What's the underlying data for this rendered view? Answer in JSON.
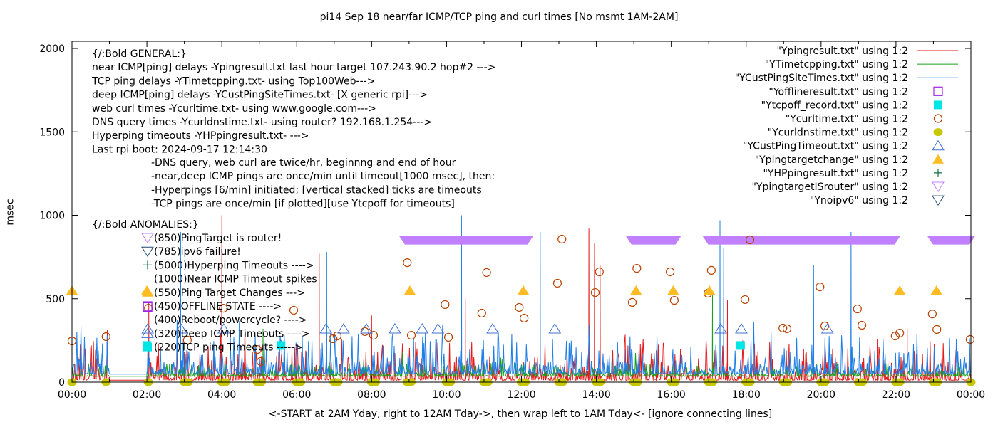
{
  "chart_data": {
    "type": "line",
    "title": "pi14 Sep 18  near/far ICMP/TCP ping and curl times [No msmt 1AM-2AM]",
    "xlabel": "<-START at 2AM Yday, right to 12AM Tday->, then wrap left to 1AM Tday<- [ignore connecting lines]",
    "ylabel": "msec",
    "xlim_hours": [
      0,
      24
    ],
    "ylim": [
      0,
      2050
    ],
    "x_ticks": [
      "00:00",
      "02:00",
      "04:00",
      "06:00",
      "08:00",
      "10:00",
      "12:00",
      "14:00",
      "16:00",
      "18:00",
      "20:00",
      "22:00",
      "00:00"
    ],
    "y_ticks": [
      0,
      500,
      1000,
      1500,
      2000
    ],
    "grid": false,
    "legend_position": "top-right",
    "annotations_general": [
      "{/:Bold GENERAL:}",
      "near ICMP[ping] delays -Ypingresult.txt last hour target 107.243.90.2 hop#2 --->",
      "TCP ping delays -YTimetcpping.txt- using Top100Web--->",
      "deep ICMP[ping] delays -YCustPingSiteTimes.txt- [X generic rpi]--->",
      "web curl times -Ycurltime.txt- using www.google.com--->",
      "DNS query times -Ycurldnstime.txt- using router? 192.168.1.254--->",
      "Hyperping timeouts -YHPpingresult.txt- --->",
      "Last rpi boot: 2024-09-17 12:14:30"
    ],
    "annotations_notes": [
      "-DNS query, web curl are twice/hr, beginnng and end of hour",
      "-near,deep ICMP pings are once/min until timeout[1000 msec], then:",
      " -Hyperpings [6/min] initiated; [vertical stacked] ticks are timeouts",
      "-TCP pings are once/min [if plotted][use Ytcpoff for timeouts]"
    ],
    "anomalies_title": "{/:Bold ANOMALIES:}",
    "anomalies": [
      {
        "marker": "tri-down-open-violet",
        "label": "(850)PingTarget is router!"
      },
      {
        "marker": "tri-down-open-navy",
        "label": "(785)ipv6 failure!"
      },
      {
        "marker": "plus-green",
        "label": "(5000)Hyperping Timeouts ---->"
      },
      {
        "marker": "none",
        "label": "(1000)Near ICMP Timeout spikes"
      },
      {
        "marker": "tri-up-filled-orange",
        "label": "(550)Ping Target Changes --->"
      },
      {
        "marker": "square-open-purple",
        "label": "(450)OFFLINE STATE ---->"
      },
      {
        "marker": "none",
        "label": "(400)Reboot/powercycle? ---->"
      },
      {
        "marker": "tri-up-open-blue",
        "label": "(320)Deep ICMP Timeouts ---->"
      },
      {
        "marker": "square-filled-cyan",
        "label": "(220)TCP ping Timeouts ----->"
      }
    ],
    "legend": [
      {
        "label": "\"Ypingresult.txt\" using 1:2",
        "style": "line",
        "color": "#e41a1c"
      },
      {
        "label": "\"YTimetcpping.txt\" using 1:2",
        "style": "line",
        "color": "#1aa01a"
      },
      {
        "label": "\"YCustPingSiteTimes.txt\" using 1:2",
        "style": "line",
        "color": "#1f7fe6"
      },
      {
        "label": "\"Yofflineresult.txt\" using 1:2",
        "style": "square-open",
        "color": "#a020f0"
      },
      {
        "label": "\"Ytcpoff_record.txt\" using 1:2",
        "style": "square-filled",
        "color": "#00e5e5"
      },
      {
        "label": "\"Ycurltime.txt\" using 1:2",
        "style": "circle-open",
        "color": "#b84000"
      },
      {
        "label": "\"Ycurldnstime.txt\" using 1:2",
        "style": "circle-filled",
        "color": "#c8c800"
      },
      {
        "label": "\"YCustPingTimeout.txt\" using 1:2",
        "style": "tri-up-open",
        "color": "#4070d0"
      },
      {
        "label": "\"Ypingtargetchange\" using 1:2",
        "style": "tri-up-filled",
        "color": "#ffbb22"
      },
      {
        "label": "\"YHPpingresult.txt\" using 1:2",
        "style": "plus",
        "color": "#107040"
      },
      {
        "label": "\"YpingtargetISrouter\" using 1:2",
        "style": "tri-down-open",
        "color": "#c080ff"
      },
      {
        "label": "\"Ynoipv6\" using 1:2",
        "style": "tri-down-open",
        "color": "#204870"
      }
    ],
    "series": [
      {
        "name": "Ycurltime.txt",
        "type": "scatter",
        "x": [
          0.0,
          0.91,
          2.04,
          3.08,
          4.04,
          4.95,
          5.04,
          5.92,
          6.97,
          7.08,
          7.82,
          8.05,
          8.95,
          9.06,
          9.96,
          10.05,
          10.94,
          11.07,
          11.94,
          12.07,
          12.96,
          13.08,
          13.97,
          14.08,
          14.96,
          15.08,
          15.97,
          16.08,
          16.98,
          17.07,
          17.97,
          18.1,
          18.98,
          19.09,
          19.97,
          20.1,
          20.97,
          21.09,
          21.98,
          22.1,
          22.97,
          23.09,
          23.98
        ],
        "y": [
          247,
          273,
          443,
          252,
          443,
          196,
          124,
          431,
          260,
          277,
          303,
          281,
          716,
          281,
          465,
          269,
          414,
          657,
          448,
          384,
          593,
          857,
          537,
          661,
          478,
          682,
          661,
          490,
          533,
          670,
          495,
          853,
          324,
          320,
          571,
          337,
          439,
          341,
          277,
          294,
          409,
          316,
          256
        ]
      },
      {
        "name": "Ycurldnstime.txt",
        "type": "scatter",
        "x": [
          0.0,
          0.91,
          2.04,
          3.0,
          3.1,
          4.0,
          4.1,
          4.95,
          5.05,
          6.0,
          6.1,
          7.0,
          7.1,
          8.0,
          8.1,
          8.95,
          9.05,
          10.0,
          10.1,
          11.0,
          11.1,
          12.0,
          12.1,
          13.0,
          13.1,
          14.0,
          14.1,
          15.0,
          15.1,
          16.0,
          16.1,
          17.0,
          17.1,
          18.0,
          18.1,
          19.0,
          19.1,
          20.0,
          20.1,
          21.0,
          21.1,
          22.0,
          22.1,
          23.0,
          23.1,
          24.0
        ],
        "y": [
          0,
          0,
          0,
          0,
          0,
          0,
          0,
          0,
          0,
          0,
          0,
          0,
          0,
          0,
          0,
          0,
          0,
          0,
          0,
          0,
          0,
          0,
          0,
          0,
          0,
          0,
          0,
          0,
          0,
          0,
          0,
          0,
          0,
          0,
          0,
          0,
          0,
          0,
          0,
          0,
          0,
          0,
          0,
          0,
          0,
          0
        ]
      },
      {
        "name": "Ypingtargetchange",
        "type": "scatter",
        "x": [
          0.0,
          2.0,
          9.02,
          12.05,
          15.06,
          16.05,
          17.02,
          22.1,
          23.08
        ],
        "y": [
          550,
          550,
          550,
          550,
          550,
          550,
          550,
          550,
          550
        ]
      },
      {
        "name": "YCustPingTimeout.txt",
        "type": "scatter",
        "x": [
          2.02,
          2.91,
          4.05,
          6.78,
          7.25,
          7.86,
          8.62,
          9.35,
          9.77,
          11.23,
          12.89,
          17.32,
          17.87,
          20.17
        ],
        "y": [
          320,
          320,
          320,
          320,
          320,
          320,
          320,
          320,
          320,
          320,
          320,
          320,
          320,
          320
        ]
      },
      {
        "name": "Ytcpoff_record.txt",
        "type": "scatter",
        "x": [
          2.0,
          5.58,
          17.85
        ],
        "y": [
          220,
          220,
          220
        ]
      },
      {
        "name": "Yofflineresult.txt",
        "type": "scatter",
        "x": [
          2.02
        ],
        "y": [
          450
        ]
      },
      {
        "name": "YpingtargetISrouter",
        "type": "band",
        "ranges_hours": [
          [
            8.85,
            12.2
          ],
          [
            14.9,
            16.15
          ],
          [
            16.95,
            22.0
          ],
          [
            22.95,
            24.0
          ]
        ],
        "y": 850
      },
      {
        "name": "Ypingresult.txt",
        "type": "line",
        "baseline": 12,
        "typical_max": 250,
        "spikes": [
          [
            2.05,
            480
          ],
          [
            3.0,
            180
          ],
          [
            4.0,
            1000
          ],
          [
            6.6,
            770
          ],
          [
            8.0,
            400
          ],
          [
            10.5,
            500
          ],
          [
            13.8,
            920
          ],
          [
            13.95,
            830
          ],
          [
            14.1,
            700
          ],
          [
            15.6,
            190
          ],
          [
            17.5,
            490
          ],
          [
            21.5,
            260
          ],
          [
            22.3,
            320
          ]
        ]
      },
      {
        "name": "YTimetcpping.txt",
        "type": "line",
        "baseline": 35,
        "typical_max": 120,
        "spikes": [
          [
            5.1,
            320
          ],
          [
            17.1,
            520
          ],
          [
            17.4,
            500
          ],
          [
            18.4,
            100
          ]
        ]
      },
      {
        "name": "YCustPingSiteTimes.txt",
        "type": "line",
        "baseline": 48,
        "typical_max": 300,
        "spikes": [
          [
            2.9,
            900
          ],
          [
            6.8,
            780
          ],
          [
            10.4,
            1000
          ],
          [
            12.5,
            900
          ],
          [
            17.3,
            970
          ],
          [
            17.4,
            800
          ],
          [
            19.8,
            700
          ],
          [
            20.8,
            900
          ]
        ]
      }
    ]
  }
}
